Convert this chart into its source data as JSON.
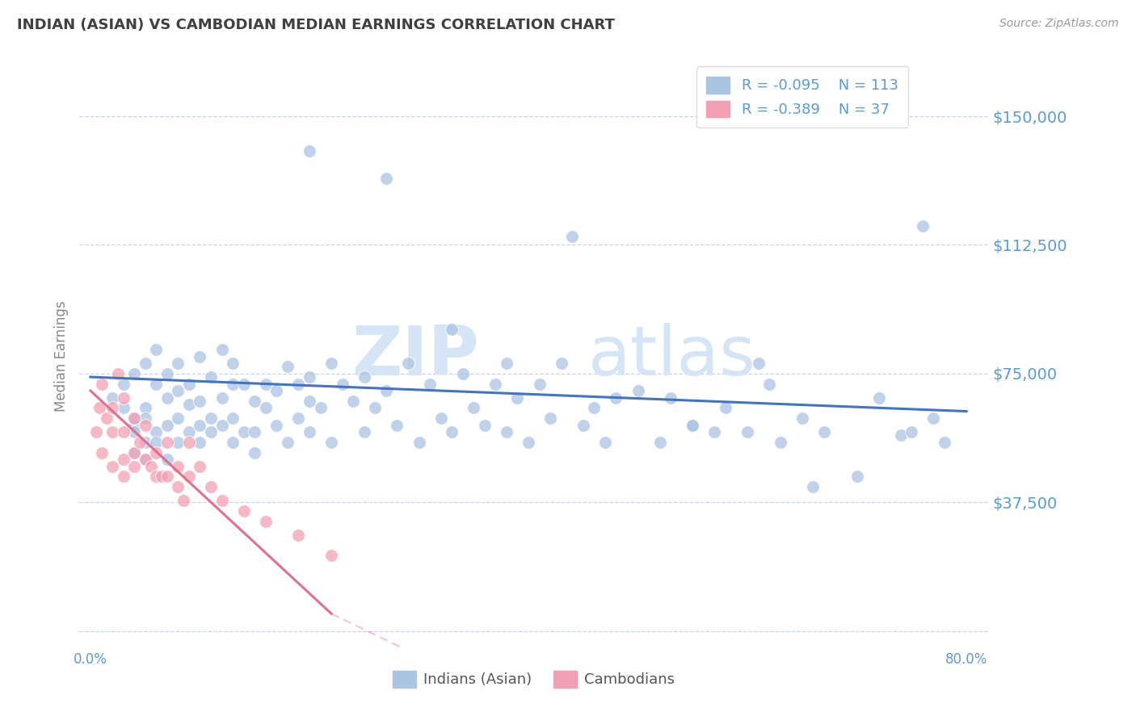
{
  "title": "INDIAN (ASIAN) VS CAMBODIAN MEDIAN EARNINGS CORRELATION CHART",
  "source": "Source: ZipAtlas.com",
  "ylabel": "Median Earnings",
  "xlim": [
    -0.01,
    0.82
  ],
  "ylim": [
    -5000,
    165000
  ],
  "yticks": [
    0,
    37500,
    75000,
    112500,
    150000
  ],
  "ytick_labels": [
    "",
    "$37,500",
    "$75,000",
    "$112,500",
    "$150,000"
  ],
  "xticks": [
    0.0,
    0.1,
    0.2,
    0.3,
    0.4,
    0.5,
    0.6,
    0.7,
    0.8
  ],
  "xtick_labels": [
    "0.0%",
    "",
    "",
    "",
    "",
    "",
    "",
    "",
    "80.0%"
  ],
  "legend_r1": "R = -0.095",
  "legend_n1": "N = 113",
  "legend_r2": "R = -0.389",
  "legend_n2": "N = 37",
  "legend_label1": "Indians (Asian)",
  "legend_label2": "Cambodians",
  "color_indian": "#aac4e2",
  "color_cambodian": "#f4a0b4",
  "color_trend_indian": "#4472c4",
  "color_trend_cambodian": "#e07090",
  "color_axis_labels": "#5b9bd5",
  "color_title": "#404040",
  "watermark_zip": "ZIP",
  "watermark_atlas": "atlas",
  "background_color": "#ffffff",
  "indian_x": [
    0.02,
    0.03,
    0.03,
    0.04,
    0.04,
    0.04,
    0.04,
    0.04,
    0.05,
    0.05,
    0.05,
    0.05,
    0.05,
    0.06,
    0.06,
    0.06,
    0.06,
    0.07,
    0.07,
    0.07,
    0.07,
    0.08,
    0.08,
    0.08,
    0.08,
    0.09,
    0.09,
    0.09,
    0.1,
    0.1,
    0.1,
    0.1,
    0.11,
    0.11,
    0.11,
    0.12,
    0.12,
    0.12,
    0.13,
    0.13,
    0.13,
    0.13,
    0.14,
    0.14,
    0.15,
    0.15,
    0.15,
    0.16,
    0.16,
    0.17,
    0.17,
    0.18,
    0.18,
    0.19,
    0.19,
    0.2,
    0.2,
    0.2,
    0.21,
    0.22,
    0.22,
    0.23,
    0.24,
    0.25,
    0.25,
    0.26,
    0.27,
    0.28,
    0.29,
    0.3,
    0.31,
    0.32,
    0.33,
    0.34,
    0.35,
    0.36,
    0.37,
    0.38,
    0.39,
    0.4,
    0.41,
    0.42,
    0.43,
    0.45,
    0.46,
    0.47,
    0.5,
    0.52,
    0.53,
    0.55,
    0.57,
    0.58,
    0.6,
    0.62,
    0.63,
    0.65,
    0.67,
    0.7,
    0.72,
    0.74,
    0.75,
    0.77,
    0.78,
    0.2,
    0.27,
    0.33,
    0.38,
    0.44,
    0.48,
    0.55,
    0.61,
    0.66,
    0.76
  ],
  "indian_y": [
    68000,
    65000,
    72000,
    60000,
    75000,
    58000,
    62000,
    52000,
    55000,
    78000,
    65000,
    62000,
    50000,
    72000,
    58000,
    82000,
    55000,
    68000,
    60000,
    75000,
    50000,
    62000,
    78000,
    55000,
    70000,
    66000,
    58000,
    72000,
    60000,
    80000,
    55000,
    67000,
    74000,
    62000,
    58000,
    82000,
    60000,
    68000,
    72000,
    55000,
    78000,
    62000,
    72000,
    58000,
    58000,
    67000,
    52000,
    72000,
    65000,
    70000,
    60000,
    77000,
    55000,
    62000,
    72000,
    58000,
    67000,
    74000,
    65000,
    78000,
    55000,
    72000,
    67000,
    58000,
    74000,
    65000,
    70000,
    60000,
    78000,
    55000,
    72000,
    62000,
    58000,
    75000,
    65000,
    60000,
    72000,
    58000,
    68000,
    55000,
    72000,
    62000,
    78000,
    60000,
    65000,
    55000,
    70000,
    55000,
    68000,
    60000,
    58000,
    65000,
    58000,
    72000,
    55000,
    62000,
    58000,
    45000,
    68000,
    57000,
    58000,
    62000,
    55000,
    140000,
    132000,
    88000,
    78000,
    115000,
    68000,
    60000,
    78000,
    42000,
    118000
  ],
  "cambodian_x": [
    0.005,
    0.008,
    0.01,
    0.01,
    0.015,
    0.02,
    0.02,
    0.02,
    0.025,
    0.03,
    0.03,
    0.03,
    0.03,
    0.04,
    0.04,
    0.04,
    0.045,
    0.05,
    0.05,
    0.055,
    0.06,
    0.06,
    0.065,
    0.07,
    0.07,
    0.08,
    0.08,
    0.085,
    0.09,
    0.09,
    0.1,
    0.11,
    0.12,
    0.14,
    0.16,
    0.19,
    0.22
  ],
  "cambodian_y": [
    58000,
    65000,
    52000,
    72000,
    62000,
    48000,
    58000,
    65000,
    75000,
    50000,
    58000,
    45000,
    68000,
    52000,
    62000,
    48000,
    55000,
    50000,
    60000,
    48000,
    45000,
    52000,
    45000,
    55000,
    45000,
    42000,
    48000,
    38000,
    45000,
    55000,
    48000,
    42000,
    38000,
    35000,
    32000,
    28000,
    22000
  ],
  "trend_indian_x0": 0.0,
  "trend_indian_y0": 74000,
  "trend_indian_x1": 0.8,
  "trend_indian_y1": 64000,
  "trend_cam_x0": 0.0,
  "trend_cam_y0": 70000,
  "trend_cam_x1": 0.22,
  "trend_cam_y1": 5000
}
